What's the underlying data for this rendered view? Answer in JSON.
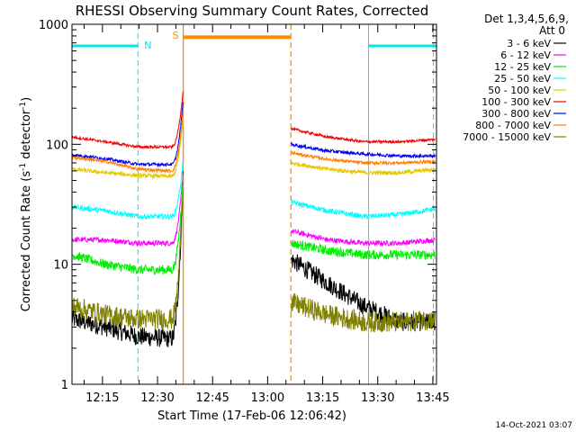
{
  "chart_data": {
    "type": "line",
    "title": "RHESSI Observing Summary Count Rates, Corrected",
    "xlabel": "Start Time (17-Feb-06 12:06:42)",
    "ylabel_parts": [
      "Corrected Count Rate (s",
      "-1",
      " detector",
      "-1",
      ")"
    ],
    "yscale": "log",
    "ylim": [
      1,
      1000
    ],
    "xlim": [
      "12:06:42",
      "13:46:00"
    ],
    "x_ticks": [
      "12:15",
      "12:30",
      "12:45",
      "13:00",
      "13:15",
      "13:30",
      "13:45"
    ],
    "y_ticks": [
      "1",
      "10",
      "100",
      "1000"
    ],
    "legend_header": [
      "Det 1,3,4,5,6,9,",
      "Att 0"
    ],
    "legend_position": "right",
    "timestamp": "14-Oct-2021 03:07",
    "annotations": {
      "night_label": "N",
      "saa_label": "S",
      "night_color": "#00e5ee",
      "saa_color": "#ff8c00",
      "night_segments": [
        [
          "12:06:42",
          "12:24:40"
        ],
        [
          "13:27:30",
          "13:46:00"
        ]
      ],
      "saa_segment": [
        "12:37:00",
        "13:06:20"
      ],
      "night_solid_lines": [
        "12:06:42",
        "13:27:30"
      ],
      "night_dashed_lines": [
        "12:24:40",
        "13:45:10"
      ],
      "saa_solid_line": "12:37:00",
      "saa_dashed_line": "13:06:20"
    },
    "gap": [
      "12:37:00",
      "13:06:20"
    ],
    "series": [
      {
        "name": "3 - 6 keV",
        "color": "#000000",
        "flare": 60,
        "pre": [
          3.5,
          3.0,
          2.5,
          2.4
        ],
        "post": [
          11,
          7,
          4.5,
          3.3,
          3.3
        ],
        "noise": 0.18
      },
      {
        "name": "6 - 12 keV",
        "color": "#ff00ff",
        "flare": 60,
        "pre": [
          16,
          16,
          15,
          15
        ],
        "post": [
          19,
          16,
          15,
          15,
          16
        ],
        "noise": 0.05
      },
      {
        "name": "12 - 25 keV",
        "color": "#00ee00",
        "flare": 55,
        "pre": [
          12,
          10,
          9,
          9
        ],
        "post": [
          15,
          13,
          12,
          12,
          12
        ],
        "noise": 0.09
      },
      {
        "name": "25 - 50 keV",
        "color": "#00ffff",
        "flare": 75,
        "pre": [
          30,
          28,
          25,
          25
        ],
        "post": [
          33,
          28,
          25,
          26,
          29
        ],
        "noise": 0.05
      },
      {
        "name": "50 - 100 keV",
        "color": "#e6c800",
        "flare": 170,
        "pre": [
          62,
          58,
          55,
          54
        ],
        "post": [
          70,
          62,
          58,
          58,
          62
        ],
        "noise": 0.04
      },
      {
        "name": "100 - 300 keV",
        "color": "#ee0000",
        "flare": 290,
        "pre": [
          115,
          105,
          95,
          95
        ],
        "post": [
          135,
          115,
          105,
          105,
          110
        ],
        "noise": 0.025
      },
      {
        "name": "300 - 800 keV",
        "color": "#0000ee",
        "flare": 240,
        "pre": [
          82,
          76,
          68,
          68
        ],
        "post": [
          100,
          88,
          83,
          80,
          80
        ],
        "noise": 0.03
      },
      {
        "name": "800 - 7000 keV",
        "color": "#ff7f00",
        "flare": 195,
        "pre": [
          78,
          72,
          62,
          60
        ],
        "post": [
          85,
          75,
          70,
          70,
          72
        ],
        "noise": 0.03
      },
      {
        "name": "7000 - 15000 keV",
        "color": "#808000",
        "flare": 48,
        "pre": [
          4.5,
          3.8,
          3.5,
          3.5
        ],
        "post": [
          4.8,
          3.8,
          3.3,
          3.3,
          3.5
        ],
        "noise": 0.2
      }
    ]
  }
}
